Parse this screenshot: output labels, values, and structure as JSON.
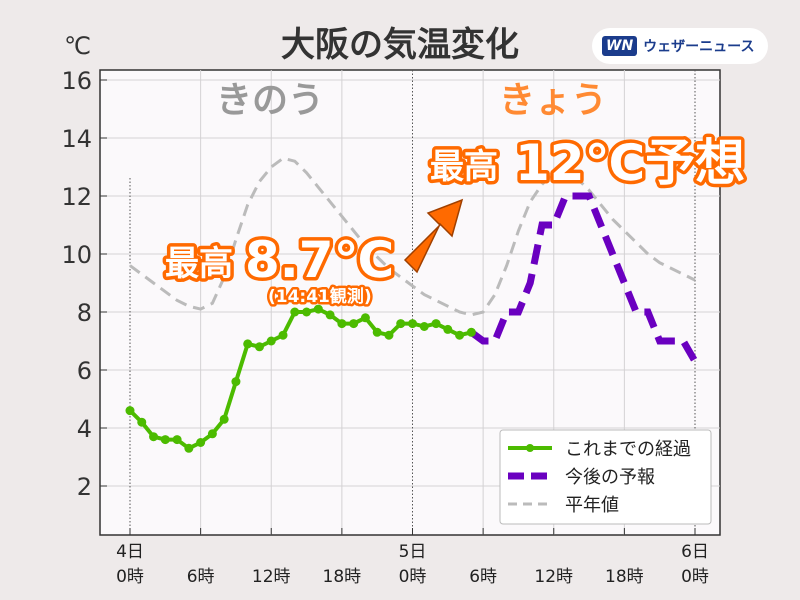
{
  "header": {
    "title": "大阪の気温変化",
    "unit": "℃",
    "logo_mark": "WN",
    "logo_text": "ウェザーニュース"
  },
  "annotations": {
    "yesterday": "きのう",
    "today": "きょう",
    "max_yesterday_prefix": "最高",
    "max_yesterday_value": "8.7℃",
    "max_yesterday_note": "(14:41観測)",
    "max_today_prefix": "最高",
    "max_today_value": "12℃予想"
  },
  "colors": {
    "observed": "#4cbb00",
    "forecast": "#6a00c0",
    "normal": "#bbbbbb",
    "accent": "#ff6a00"
  },
  "chart_data": {
    "type": "line",
    "title": "大阪の気温変化",
    "ylabel": "℃",
    "ylim": [
      0.5,
      16.5
    ],
    "xlim": [
      -1.5,
      50
    ],
    "yticks": [
      2,
      4,
      6,
      8,
      10,
      12,
      14,
      16
    ],
    "xticks": [
      {
        "hour": 0,
        "label1": "4日",
        "label2": "0時"
      },
      {
        "hour": 6,
        "label1": "",
        "label2": "6時"
      },
      {
        "hour": 12,
        "label1": "",
        "label2": "12時"
      },
      {
        "hour": 18,
        "label1": "",
        "label2": "18時"
      },
      {
        "hour": 24,
        "label1": "5日",
        "label2": "0時"
      },
      {
        "hour": 30,
        "label1": "",
        "label2": "6時"
      },
      {
        "hour": 36,
        "label1": "",
        "label2": "12時"
      },
      {
        "hour": 42,
        "label1": "",
        "label2": "18時"
      },
      {
        "hour": 48,
        "label1": "6日",
        "label2": "0時"
      }
    ],
    "grid": true,
    "legend_position": "bottom-right",
    "series": [
      {
        "name": "これまでの経過",
        "style": "solid-markers",
        "x": [
          0,
          1,
          2,
          3,
          4,
          5,
          6,
          7,
          8,
          9,
          10,
          11,
          12,
          13,
          14,
          15,
          16,
          17,
          18,
          19,
          20,
          21,
          22,
          23,
          24,
          25,
          26,
          27,
          28,
          29
        ],
        "y": [
          4.6,
          4.2,
          3.7,
          3.6,
          3.6,
          3.3,
          3.5,
          3.8,
          4.3,
          5.6,
          6.9,
          6.8,
          7.0,
          7.2,
          8.0,
          8.0,
          8.1,
          7.9,
          7.6,
          7.6,
          7.8,
          7.3,
          7.2,
          7.6,
          7.6,
          7.5,
          7.6,
          7.4,
          7.2,
          7.3
        ]
      },
      {
        "name": "今後の予報",
        "style": "dashed-thick",
        "x": [
          29,
          30,
          31,
          32,
          33,
          34,
          35,
          36,
          37,
          38,
          39,
          40,
          41,
          42,
          43,
          44,
          45,
          46,
          47,
          48
        ],
        "y": [
          7.3,
          7.0,
          7.0,
          8.0,
          8.0,
          9.0,
          11.0,
          11.0,
          12.0,
          12.0,
          12.0,
          11.0,
          10.0,
          9.0,
          8.0,
          8.0,
          7.0,
          7.0,
          7.0,
          6.3
        ]
      },
      {
        "name": "平年値",
        "style": "dashed-thin",
        "x": [
          0,
          1,
          2,
          3,
          4,
          5,
          6,
          7,
          8,
          9,
          10,
          11,
          12,
          13,
          14,
          15,
          16,
          17,
          18,
          19,
          20,
          21,
          22,
          23,
          24,
          25,
          26,
          27,
          28,
          29,
          30,
          31,
          32,
          33,
          34,
          35,
          36,
          37,
          38,
          39,
          40,
          41,
          42,
          43,
          44,
          45,
          46,
          47,
          48
        ],
        "y": [
          9.6,
          9.3,
          9.0,
          8.7,
          8.4,
          8.2,
          8.1,
          8.3,
          9.2,
          10.5,
          11.7,
          12.5,
          13.0,
          13.3,
          13.2,
          12.8,
          12.3,
          11.8,
          11.3,
          10.8,
          10.3,
          9.9,
          9.5,
          9.2,
          8.9,
          8.6,
          8.4,
          8.2,
          8.0,
          7.9,
          8.0,
          8.6,
          9.6,
          10.8,
          11.8,
          12.4,
          12.8,
          12.8,
          12.6,
          12.2,
          11.7,
          11.2,
          10.8,
          10.4,
          10.0,
          9.7,
          9.5,
          9.3,
          9.1
        ]
      }
    ]
  }
}
